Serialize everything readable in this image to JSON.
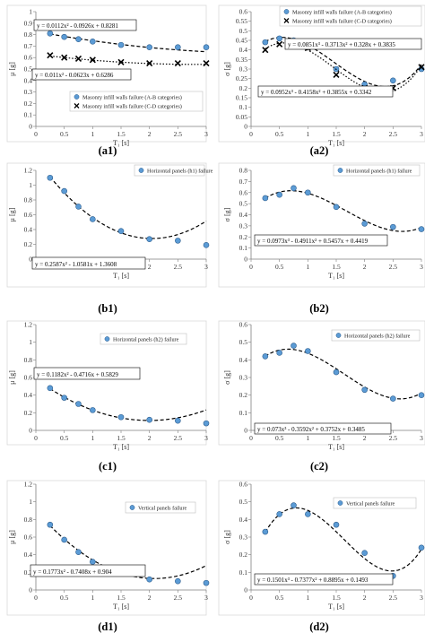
{
  "chart_data": [
    {
      "id": "a1",
      "type": "scatter",
      "caption": "(a1)",
      "ylabel": "μ [g]",
      "xlabel": "T₁ [s]",
      "xlim": [
        0,
        3
      ],
      "ylim": [
        0,
        1
      ],
      "xticks": [
        0,
        0.5,
        1,
        1.5,
        2,
        2.5,
        3
      ],
      "xtick_labels": [
        "0",
        "0.5",
        "1",
        "1.5",
        "2",
        "2.5",
        "3"
      ],
      "yticks": [
        0,
        0.1,
        0.2,
        0.3,
        0.4,
        0.5,
        0.6,
        0.7,
        0.8,
        0.9,
        1
      ],
      "ytick_labels": [
        "0",
        "0.1",
        "0.2",
        "0.3",
        "0.4",
        "0.5",
        "0.6",
        "0.7",
        "0.8",
        "0.9",
        "1"
      ],
      "grid": false,
      "legend_position": "center-bottom",
      "series": [
        {
          "name": "Masonry infill walls failure (A-B categories)",
          "marker": "circle",
          "line": "dashed",
          "x": [
            0.25,
            0.5,
            0.75,
            1,
            1.5,
            2,
            2.5,
            3
          ],
          "y": [
            0.81,
            0.78,
            0.76,
            0.74,
            0.71,
            0.69,
            0.69,
            0.69
          ],
          "trend_coeffs": [
            0.8281,
            -0.0926,
            0.0112
          ],
          "trend_domain": [
            0.25,
            3
          ],
          "equation": "y = 0.0112x² - 0.0926x + 0.8281"
        },
        {
          "name": "Masonry infill walls failure (C-D categories)",
          "marker": "x",
          "line": "dotted",
          "x": [
            0.25,
            0.5,
            0.75,
            1,
            1.5,
            2,
            2.5,
            3
          ],
          "y": [
            0.62,
            0.6,
            0.59,
            0.58,
            0.56,
            0.55,
            0.55,
            0.55
          ],
          "trend_coeffs": [
            0.6286,
            -0.0623,
            0.011
          ],
          "trend_domain": [
            0.25,
            3
          ],
          "equation": "y = 0.011x² - 0.0623x + 0.6286"
        }
      ]
    },
    {
      "id": "a2",
      "type": "scatter",
      "caption": "(a2)",
      "ylabel": "σ [g]",
      "xlabel": "T₁ [s]",
      "xlim": [
        0,
        3
      ],
      "ylim": [
        0,
        0.6
      ],
      "xticks": [
        0,
        0.5,
        1,
        1.5,
        2,
        2.5,
        3
      ],
      "xtick_labels": [
        "0",
        "0.5",
        "1",
        "1.5",
        "2",
        "2.5",
        "3"
      ],
      "yticks": [
        0,
        0.05,
        0.1,
        0.15,
        0.2,
        0.25,
        0.3,
        0.35,
        0.4,
        0.45,
        0.5,
        0.55,
        0.6
      ],
      "ytick_labels": [
        "0",
        "0.05",
        "0.1",
        "0.15",
        "0.2",
        "0.25",
        "0.3",
        "0.35",
        "0.4",
        "0.45",
        "0.5",
        "0.55",
        "0.6"
      ],
      "grid": false,
      "legend_position": "top-right",
      "series": [
        {
          "name": "Masonry infill walls failure (A-B categories)",
          "marker": "circle",
          "line": "dashed",
          "x": [
            0.25,
            0.5,
            0.75,
            1,
            1.5,
            2,
            2.5,
            3
          ],
          "y": [
            0.44,
            0.46,
            0.45,
            0.43,
            0.3,
            0.22,
            0.24,
            0.3
          ],
          "trend_coeffs": [
            0.3835,
            0.328,
            -0.3713,
            0.0851
          ],
          "trend_domain": [
            0.25,
            3
          ],
          "equation": "y = 0.0851x³ - 0.3713x² + 0.328x + 0.3835"
        },
        {
          "name": "Masonry infill walls failure (C-D categories)",
          "marker": "x",
          "line": "dotted",
          "x": [
            0.25,
            0.5,
            0.75,
            1,
            1.5,
            2,
            2.5,
            3
          ],
          "y": [
            0.4,
            0.43,
            0.44,
            0.41,
            0.27,
            0.2,
            0.2,
            0.31
          ],
          "trend_coeffs": [
            0.3342,
            0.3855,
            -0.4158,
            0.0952
          ],
          "trend_domain": [
            0.25,
            3
          ],
          "equation": "y = 0.0952x³ - 0.4158x² + 0.3855x + 0.3342"
        }
      ]
    },
    {
      "id": "b1",
      "type": "scatter",
      "caption": "(b1)",
      "ylabel": "μ [g]",
      "xlabel": "T₁ [s]",
      "xlim": [
        0,
        3
      ],
      "ylim": [
        0,
        1.2
      ],
      "xticks": [
        0,
        0.5,
        1,
        1.5,
        2,
        2.5,
        3
      ],
      "xtick_labels": [
        "0",
        "0.5",
        "1",
        "1.5",
        "2",
        "2.5",
        "3"
      ],
      "yticks": [
        0,
        0.2,
        0.4,
        0.6,
        0.8,
        1,
        1.2
      ],
      "ytick_labels": [
        "0",
        "0.2",
        "0.4",
        "0.6",
        "0.8",
        "1",
        "1.2"
      ],
      "grid": false,
      "legend_position": "top-right",
      "series": [
        {
          "name": "Horizontal panels (h1) failure",
          "marker": "circle",
          "line": "dashed",
          "x": [
            0.25,
            0.5,
            0.75,
            1,
            1.5,
            2,
            2.5,
            3
          ],
          "y": [
            1.1,
            0.92,
            0.71,
            0.54,
            0.38,
            0.27,
            0.25,
            0.19
          ],
          "trend_coeffs": [
            1.3608,
            -1.0581,
            0.2587
          ],
          "trend_domain": [
            0.25,
            3
          ],
          "equation": "y = 0.2587x² - 1.0581x + 1.3608"
        }
      ]
    },
    {
      "id": "b2",
      "type": "scatter",
      "caption": "(b2)",
      "ylabel": "σ [g]",
      "xlabel": "T₁ [s]",
      "xlim": [
        0,
        3
      ],
      "ylim": [
        0,
        0.8
      ],
      "xticks": [
        0,
        0.5,
        1,
        1.5,
        2,
        2.5,
        3
      ],
      "xtick_labels": [
        "0",
        "0.5",
        "1",
        "1.5",
        "2",
        "2.5",
        "3"
      ],
      "yticks": [
        0,
        0.1,
        0.2,
        0.3,
        0.4,
        0.5,
        0.6,
        0.7,
        0.8
      ],
      "ytick_labels": [
        "0",
        "0.1",
        "0.2",
        "0.3",
        "0.4",
        "0.5",
        "0.6",
        "0.7",
        "0.8"
      ],
      "grid": false,
      "legend_position": "top-right",
      "series": [
        {
          "name": "Horizontal panels (h1) failure",
          "marker": "circle",
          "line": "dashed",
          "x": [
            0.25,
            0.5,
            0.75,
            1,
            1.5,
            2,
            2.5,
            3
          ],
          "y": [
            0.55,
            0.58,
            0.64,
            0.6,
            0.47,
            0.32,
            0.29,
            0.27
          ],
          "trend_coeffs": [
            0.4419,
            0.5457,
            -0.4911,
            0.0973
          ],
          "trend_domain": [
            0.25,
            3
          ],
          "equation": "y = 0.0973x³ - 0.4911x² + 0.5457x + 0.4419"
        }
      ]
    },
    {
      "id": "c1",
      "type": "scatter",
      "caption": "(c1)",
      "ylabel": "μ [g]",
      "xlabel": "T₁ [s]",
      "xlim": [
        0,
        3
      ],
      "ylim": [
        0,
        1.2
      ],
      "xticks": [
        0,
        0.5,
        1,
        1.5,
        2,
        2.5,
        3
      ],
      "xtick_labels": [
        "0",
        "0.5",
        "1",
        "1.5",
        "2",
        "2.5",
        "3"
      ],
      "yticks": [
        0,
        0.2,
        0.4,
        0.6,
        0.8,
        1,
        1.2
      ],
      "ytick_labels": [
        "0",
        "0.2",
        "0.4",
        "0.6",
        "0.8",
        "1",
        "1.2"
      ],
      "grid": false,
      "legend_position": "top-right",
      "series": [
        {
          "name": "Horizontal panels (h2) failure",
          "marker": "circle",
          "line": "dashed",
          "x": [
            0.25,
            0.5,
            0.75,
            1,
            1.5,
            2,
            2.5,
            3
          ],
          "y": [
            0.48,
            0.37,
            0.3,
            0.23,
            0.15,
            0.12,
            0.11,
            0.08
          ],
          "trend_coeffs": [
            0.5829,
            -0.4716,
            0.1182
          ],
          "trend_domain": [
            0.25,
            3
          ],
          "equation": "y = 0.1182x² - 0.4716x + 0.5829"
        }
      ]
    },
    {
      "id": "c2",
      "type": "scatter",
      "caption": "(c2)",
      "ylabel": "σ [g]",
      "xlabel": "T₁ [s]",
      "xlim": [
        0,
        3
      ],
      "ylim": [
        0,
        0.6
      ],
      "xticks": [
        0,
        0.5,
        1,
        1.5,
        2,
        2.5,
        3
      ],
      "xtick_labels": [
        "0",
        "0.5",
        "1",
        "1.5",
        "2",
        "2.5",
        "3"
      ],
      "yticks": [
        0,
        0.1,
        0.2,
        0.3,
        0.4,
        0.5,
        0.6
      ],
      "ytick_labels": [
        "0",
        "0.1",
        "0.2",
        "0.3",
        "0.4",
        "0.5",
        "0.6"
      ],
      "grid": false,
      "legend_position": "top-right",
      "series": [
        {
          "name": "Horizontal panels (h2) failure",
          "marker": "circle",
          "line": "dashed",
          "x": [
            0.25,
            0.5,
            0.75,
            1,
            1.5,
            2,
            2.5,
            3
          ],
          "y": [
            0.42,
            0.44,
            0.48,
            0.45,
            0.33,
            0.23,
            0.18,
            0.2
          ],
          "trend_coeffs": [
            0.3485,
            0.3752,
            -0.3592,
            0.073
          ],
          "trend_domain": [
            0.25,
            3
          ],
          "equation": "y = 0.073x³ - 0.3592x² + 0.3752x + 0.3485"
        }
      ]
    },
    {
      "id": "d1",
      "type": "scatter",
      "caption": "(d1)",
      "ylabel": "μ [g]",
      "xlabel": "T₁ [s]",
      "xlim": [
        0,
        3
      ],
      "ylim": [
        0,
        1.2
      ],
      "xticks": [
        0,
        0.5,
        1,
        1.5,
        2,
        2.5,
        3
      ],
      "xtick_labels": [
        "0",
        "0.5",
        "1",
        "1.5",
        "2",
        "2.5",
        "3"
      ],
      "yticks": [
        0,
        0.2,
        0.4,
        0.6,
        0.8,
        1,
        1.2
      ],
      "ytick_labels": [
        "0",
        "0.2",
        "0.4",
        "0.6",
        "0.8",
        "1",
        "1.2"
      ],
      "grid": false,
      "legend_position": "top-right",
      "series": [
        {
          "name": "Vertical panels failure",
          "marker": "circle",
          "line": "dashed",
          "x": [
            0.25,
            0.5,
            0.75,
            1,
            1.5,
            2,
            2.5,
            3
          ],
          "y": [
            0.74,
            0.57,
            0.43,
            0.32,
            0.21,
            0.12,
            0.1,
            0.08
          ],
          "trend_coeffs": [
            0.904,
            -0.7408,
            0.1773
          ],
          "trend_domain": [
            0.25,
            3
          ],
          "equation": "y = 0.1773x² - 0.7408x + 0.904"
        }
      ]
    },
    {
      "id": "d2",
      "type": "scatter",
      "caption": "(d2)",
      "ylabel": "σ [g]",
      "xlabel": "T₁ [s]",
      "xlim": [
        0,
        3
      ],
      "ylim": [
        0,
        0.6
      ],
      "xticks": [
        0,
        0.5,
        1,
        1.5,
        2,
        2.5,
        3
      ],
      "xtick_labels": [
        "0",
        "0.5",
        "1",
        "1.5",
        "2",
        "2.5",
        "3"
      ],
      "yticks": [
        0,
        0.1,
        0.2,
        0.3,
        0.4,
        0.5,
        0.6
      ],
      "ytick_labels": [
        "0",
        "0.1",
        "0.2",
        "0.3",
        "0.4",
        "0.5",
        "0.6"
      ],
      "grid": false,
      "legend_position": "top-right",
      "series": [
        {
          "name": "Vertical panels failure",
          "marker": "circle",
          "line": "dashed",
          "x": [
            0.25,
            0.5,
            0.75,
            1,
            1.5,
            2,
            2.5,
            3
          ],
          "y": [
            0.33,
            0.43,
            0.48,
            0.43,
            0.37,
            0.21,
            0.08,
            0.24
          ],
          "trend_coeffs": [
            0.1493,
            0.8895,
            -0.7377,
            0.1501
          ],
          "trend_domain": [
            0.25,
            3
          ],
          "equation": "y = 0.1501x³ - 0.7377x² + 0.8895x + 0.1493"
        }
      ]
    }
  ],
  "colors": {
    "marker_fill": "#5b9bd5",
    "marker_stroke": "#2f5f8f",
    "axis": "#000000",
    "tick_text": "#333333",
    "trend": "#000000"
  }
}
